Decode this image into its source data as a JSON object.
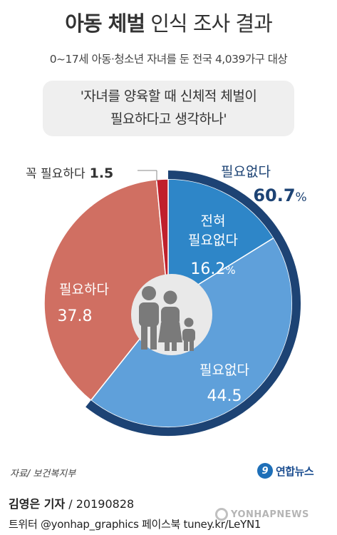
{
  "header": {
    "title_bold": "아동 체벌",
    "title_light": "인식 조사 결과",
    "subtitle": "0~17세 아동·청소년 자녀를 둔 전국 4,039가구 대상"
  },
  "question": {
    "line1": "'자녀를 양육할 때 신체적 체벌이",
    "line2": "필요하다고 생각하나'"
  },
  "chart_data": {
    "type": "pie",
    "unit": "%",
    "slices": [
      {
        "label": "전혀 필요없다",
        "value": 16.2,
        "color": "#2e86c8"
      },
      {
        "label": "필요없다",
        "value": 44.5,
        "color": "#5fa0da"
      },
      {
        "label": "필요하다",
        "value": 37.8,
        "color": "#d06f62"
      },
      {
        "label": "꼭 필요하다",
        "value": 1.5,
        "color": "#c0202c"
      }
    ],
    "total_group": {
      "label": "필요없다",
      "value": "60.7",
      "unit": "%",
      "color": "#1d4374"
    }
  },
  "labels": {
    "very_unneeded_l1": "전혀",
    "very_unneeded_l2": "필요없다",
    "very_unneeded_val": "16.2",
    "unneeded": "필요없다",
    "unneeded_val": "44.5",
    "needed": "필요하다",
    "needed_val": "37.8",
    "must": "꼭 필요하다",
    "must_val": "1.5",
    "group": "필요없다",
    "group_val": "60.7",
    "pct": "%"
  },
  "footer": {
    "source": "자료/ 보건복지부",
    "brand_logo": "9",
    "brand": "연합뉴스",
    "reporter_name": "김영은 기자",
    "reporter_rest": " / 20190828",
    "social": "트위터 @yonhap_graphics  페이스북 tuney.kr/LeYN1",
    "watermark": "YONHAPNEWS"
  },
  "icons": [
    "family-icon"
  ]
}
